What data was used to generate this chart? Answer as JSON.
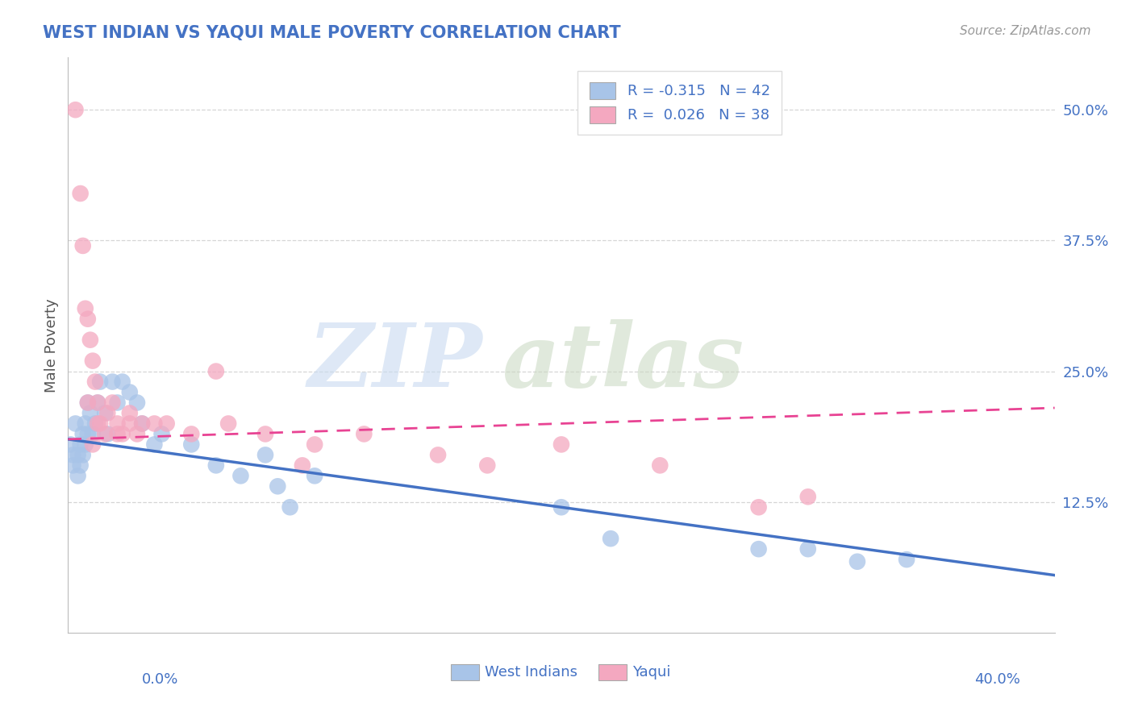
{
  "title": "WEST INDIAN VS YAQUI MALE POVERTY CORRELATION CHART",
  "source": "Source: ZipAtlas.com",
  "ylabel": "Male Poverty",
  "xlim": [
    0.0,
    0.4
  ],
  "ylim": [
    0.0,
    0.55
  ],
  "blue_color": "#a8c4e8",
  "pink_color": "#f4a8c0",
  "blue_line_color": "#4472C4",
  "pink_line_color": "#E84393",
  "text_color": "#4472C4",
  "legend_blue_label": "R = -0.315   N = 42",
  "legend_pink_label": "R =  0.026   N = 38",
  "blue_trend_x": [
    0.0,
    0.4
  ],
  "blue_trend_y": [
    0.185,
    0.055
  ],
  "pink_trend_x": [
    0.0,
    0.4
  ],
  "pink_trend_y": [
    0.185,
    0.215
  ],
  "west_indians_x": [
    0.001,
    0.002,
    0.002,
    0.003,
    0.004,
    0.004,
    0.005,
    0.005,
    0.006,
    0.006,
    0.007,
    0.007,
    0.008,
    0.008,
    0.009,
    0.01,
    0.011,
    0.012,
    0.013,
    0.015,
    0.016,
    0.018,
    0.02,
    0.022,
    0.025,
    0.028,
    0.03,
    0.035,
    0.038,
    0.05,
    0.06,
    0.07,
    0.08,
    0.085,
    0.09,
    0.1,
    0.2,
    0.22,
    0.28,
    0.3,
    0.32,
    0.34
  ],
  "west_indians_y": [
    0.18,
    0.16,
    0.17,
    0.2,
    0.15,
    0.17,
    0.18,
    0.16,
    0.19,
    0.17,
    0.2,
    0.18,
    0.22,
    0.19,
    0.21,
    0.19,
    0.2,
    0.22,
    0.24,
    0.21,
    0.19,
    0.24,
    0.22,
    0.24,
    0.23,
    0.22,
    0.2,
    0.18,
    0.19,
    0.18,
    0.16,
    0.15,
    0.17,
    0.14,
    0.12,
    0.15,
    0.12,
    0.09,
    0.08,
    0.08,
    0.068,
    0.07
  ],
  "yaqui_x": [
    0.003,
    0.005,
    0.006,
    0.007,
    0.008,
    0.009,
    0.01,
    0.011,
    0.012,
    0.013,
    0.015,
    0.016,
    0.018,
    0.02,
    0.022,
    0.025,
    0.028,
    0.03,
    0.035,
    0.04,
    0.05,
    0.06,
    0.065,
    0.08,
    0.095,
    0.1,
    0.12,
    0.15,
    0.17,
    0.2,
    0.24,
    0.28,
    0.3,
    0.01,
    0.012,
    0.008,
    0.02,
    0.025
  ],
  "yaqui_y": [
    0.5,
    0.42,
    0.37,
    0.31,
    0.3,
    0.28,
    0.26,
    0.24,
    0.22,
    0.2,
    0.19,
    0.21,
    0.22,
    0.2,
    0.19,
    0.2,
    0.19,
    0.2,
    0.2,
    0.2,
    0.19,
    0.25,
    0.2,
    0.19,
    0.16,
    0.18,
    0.19,
    0.17,
    0.16,
    0.18,
    0.16,
    0.12,
    0.13,
    0.18,
    0.2,
    0.22,
    0.19,
    0.21
  ]
}
